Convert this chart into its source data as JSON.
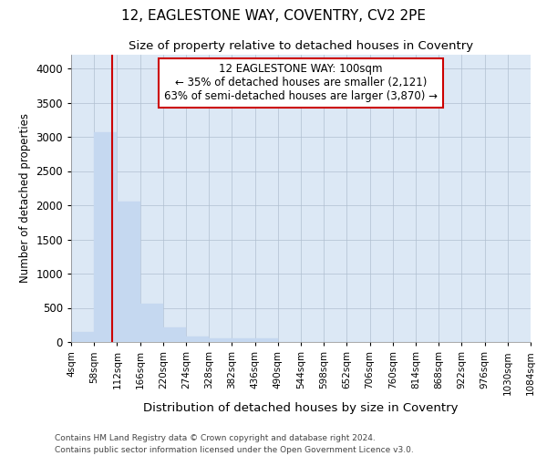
{
  "title": "12, EAGLESTONE WAY, COVENTRY, CV2 2PE",
  "subtitle": "Size of property relative to detached houses in Coventry",
  "xlabel": "Distribution of detached houses by size in Coventry",
  "ylabel": "Number of detached properties",
  "bar_color": "#c5d8f0",
  "bar_edgecolor": "#c5d8f0",
  "grid_color": "#b0bfd0",
  "figure_bg_color": "#ffffff",
  "plot_bg_color": "#dce8f5",
  "vline_x": 100,
  "vline_color": "#cc0000",
  "annotation_text": "12 EAGLESTONE WAY: 100sqm\n← 35% of detached houses are smaller (2,121)\n63% of semi-detached houses are larger (3,870) →",
  "annotation_box_facecolor": "#ffffff",
  "annotation_box_edgecolor": "#cc0000",
  "bin_edges": [
    4,
    58,
    112,
    166,
    220,
    274,
    328,
    382,
    436,
    490,
    544,
    598,
    652,
    706,
    760,
    814,
    868,
    922,
    976,
    1030,
    1084
  ],
  "bar_heights": [
    150,
    3070,
    2060,
    565,
    210,
    80,
    55,
    50,
    55,
    0,
    0,
    0,
    0,
    0,
    0,
    0,
    0,
    0,
    0,
    0
  ],
  "xlim": [
    4,
    1084
  ],
  "ylim": [
    0,
    4200
  ],
  "yticks": [
    0,
    500,
    1000,
    1500,
    2000,
    2500,
    3000,
    3500,
    4000
  ],
  "tick_labels": [
    "4sqm",
    "58sqm",
    "112sqm",
    "166sqm",
    "220sqm",
    "274sqm",
    "328sqm",
    "382sqm",
    "436sqm",
    "490sqm",
    "544sqm",
    "598sqm",
    "652sqm",
    "706sqm",
    "760sqm",
    "814sqm",
    "868sqm",
    "922sqm",
    "976sqm",
    "1030sqm",
    "1084sqm"
  ],
  "footer_text": "Contains HM Land Registry data © Crown copyright and database right 2024.\nContains public sector information licensed under the Open Government Licence v3.0.",
  "figsize": [
    6.0,
    5.0
  ],
  "dpi": 100
}
